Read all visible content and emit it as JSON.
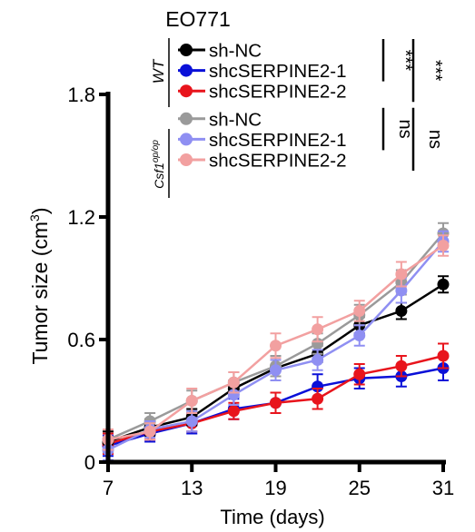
{
  "chart_data": {
    "type": "line",
    "title": "EO771",
    "xlabel": "Time (days)",
    "ylabel_main": "Tumor size (cm",
    "ylabel_sup": "3",
    "ylabel_close": ")",
    "xlim": [
      7,
      31
    ],
    "ylim": [
      0,
      1.8
    ],
    "xticks": [
      7,
      13,
      19,
      25,
      31
    ],
    "yticks": [
      0,
      0.6,
      1.2,
      1.8
    ],
    "ytick_labels": [
      "0",
      "0.6",
      "1.2",
      "1.8"
    ],
    "x": [
      7,
      10,
      13,
      16,
      19,
      22,
      25,
      28,
      31
    ],
    "legend_groups": [
      {
        "label": "WT",
        "entries": [
          0,
          1,
          2
        ],
        "significance": [
          {
            "text": "***",
            "span": [
              0,
              1
            ]
          },
          {
            "text": "***",
            "span": [
              0,
              2
            ]
          }
        ]
      },
      {
        "label_main": "Csf1",
        "label_sup": "op/op",
        "entries": [
          3,
          4,
          5
        ],
        "significance": [
          {
            "text": "ns",
            "span": [
              3,
              4
            ]
          },
          {
            "text": "ns",
            "span": [
              3,
              5
            ]
          }
        ]
      }
    ],
    "series": [
      {
        "name": "sh-NC",
        "color": "#000000",
        "layer": 3,
        "values": [
          0.1,
          0.17,
          0.22,
          0.36,
          0.46,
          0.53,
          0.67,
          0.74,
          0.87
        ],
        "errors": [
          0.05,
          0.04,
          0.04,
          0.04,
          0.04,
          0.04,
          0.04,
          0.04,
          0.04
        ]
      },
      {
        "name": "shcSERPINE2-1",
        "color": "#0a10d8",
        "layer": 1,
        "values": [
          0.08,
          0.14,
          0.19,
          0.26,
          0.29,
          0.37,
          0.41,
          0.42,
          0.46
        ],
        "errors": [
          0.05,
          0.04,
          0.05,
          0.05,
          0.05,
          0.06,
          0.05,
          0.05,
          0.06
        ]
      },
      {
        "name": "shcSERPINE2-2",
        "color": "#e8141c",
        "layer": 2,
        "values": [
          0.09,
          0.15,
          0.19,
          0.25,
          0.29,
          0.31,
          0.43,
          0.47,
          0.52
        ],
        "errors": [
          0.05,
          0.04,
          0.04,
          0.04,
          0.05,
          0.05,
          0.05,
          0.05,
          0.06
        ]
      },
      {
        "name": "sh-NC",
        "color": "#9a9a9a",
        "layer": 4,
        "values": [
          0.11,
          0.2,
          0.3,
          0.39,
          0.47,
          0.58,
          0.72,
          0.88,
          1.12
        ],
        "errors": [
          0.05,
          0.04,
          0.05,
          0.05,
          0.05,
          0.05,
          0.05,
          0.06,
          0.05
        ]
      },
      {
        "name": "shcSERPINE2-1",
        "color": "#8f8ff2",
        "layer": 5,
        "values": [
          0.06,
          0.16,
          0.2,
          0.33,
          0.45,
          0.5,
          0.62,
          0.84,
          1.08
        ],
        "errors": [
          0.05,
          0.04,
          0.05,
          0.05,
          0.05,
          0.05,
          0.05,
          0.06,
          0.05
        ]
      },
      {
        "name": "shcSERPINE2-2",
        "color": "#f2a0a0",
        "layer": 6,
        "values": [
          0.11,
          0.15,
          0.3,
          0.39,
          0.57,
          0.65,
          0.74,
          0.92,
          1.06
        ],
        "errors": [
          0.05,
          0.04,
          0.06,
          0.05,
          0.06,
          0.06,
          0.05,
          0.06,
          0.05
        ]
      }
    ]
  }
}
